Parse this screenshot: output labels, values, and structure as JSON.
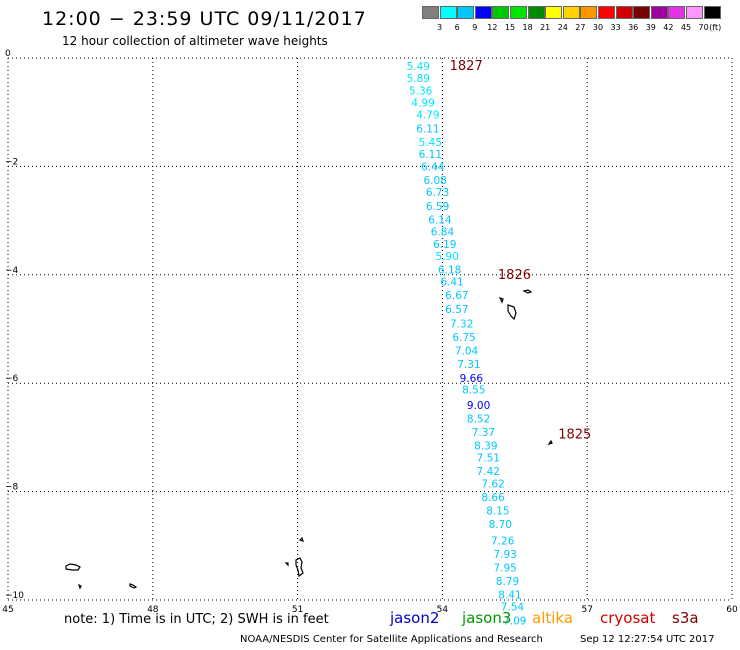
{
  "header": {
    "title": "12:00 − 23:59 UTC 09/11/2017",
    "subtitle": "12 hour collection of altimeter wave heights"
  },
  "colorbar": {
    "unit_label": "(ft)",
    "bins": [
      {
        "label": "3",
        "color": "#7f7f7f"
      },
      {
        "label": "6",
        "color": "#00ffff"
      },
      {
        "label": "9",
        "color": "#00c8ff"
      },
      {
        "label": "12",
        "color": "#0000ff"
      },
      {
        "label": "15",
        "color": "#00c800"
      },
      {
        "label": "18",
        "color": "#00e600"
      },
      {
        "label": "21",
        "color": "#008c00"
      },
      {
        "label": "24",
        "color": "#ffff00"
      },
      {
        "label": "27",
        "color": "#ffd200"
      },
      {
        "label": "30",
        "color": "#ff9600"
      },
      {
        "label": "33",
        "color": "#ff0000"
      },
      {
        "label": "36",
        "color": "#d20000"
      },
      {
        "label": "39",
        "color": "#780000"
      },
      {
        "label": "42",
        "color": "#a000a0"
      },
      {
        "label": "45",
        "color": "#e632e6"
      },
      {
        "label": "70",
        "color": "#ff96ff"
      },
      {
        "label": "",
        "color": "#000000"
      }
    ]
  },
  "chart_data": {
    "type": "scatter",
    "xlim": [
      45,
      60
    ],
    "ylim": [
      -10,
      0
    ],
    "x_ticks": [
      "45",
      "48",
      "51",
      "54",
      "57",
      "60"
    ],
    "y_ticks": [
      "0",
      "−2",
      "−4",
      "−6",
      "−8",
      "−10"
    ],
    "grid": true,
    "time_labels": [
      {
        "text": "1827",
        "x": 54.15,
        "y": -0.15
      },
      {
        "text": "1826",
        "x": 55.15,
        "y": -4.0
      },
      {
        "text": "1825",
        "x": 56.4,
        "y": -6.95
      }
    ],
    "points": [
      {
        "x": 53.5,
        "y": -0.15,
        "swh": "5.49"
      },
      {
        "x": 53.5,
        "y": -0.37,
        "swh": "5.89"
      },
      {
        "x": 53.55,
        "y": -0.6,
        "swh": "5.36"
      },
      {
        "x": 53.6,
        "y": -0.82,
        "swh": "4.99"
      },
      {
        "x": 53.7,
        "y": -1.04,
        "swh": "4.79"
      },
      {
        "x": 53.7,
        "y": -1.3,
        "swh": "6.11"
      },
      {
        "x": 53.75,
        "y": -1.55,
        "swh": "5.45"
      },
      {
        "x": 53.75,
        "y": -1.77,
        "swh": "6.11"
      },
      {
        "x": 53.8,
        "y": -2.0,
        "swh": "6.44"
      },
      {
        "x": 53.85,
        "y": -2.25,
        "swh": "6.08"
      },
      {
        "x": 53.9,
        "y": -2.47,
        "swh": "6.73"
      },
      {
        "x": 53.9,
        "y": -2.73,
        "swh": "6.59"
      },
      {
        "x": 53.95,
        "y": -2.98,
        "swh": "6.14"
      },
      {
        "x": 54.0,
        "y": -3.2,
        "swh": "6.84"
      },
      {
        "x": 54.05,
        "y": -3.43,
        "swh": "6.19"
      },
      {
        "x": 54.1,
        "y": -3.65,
        "swh": "5.90"
      },
      {
        "x": 54.15,
        "y": -3.9,
        "swh": "6.18"
      },
      {
        "x": 54.2,
        "y": -4.12,
        "swh": "6.41"
      },
      {
        "x": 54.3,
        "y": -4.37,
        "swh": "6.67"
      },
      {
        "x": 54.3,
        "y": -4.63,
        "swh": "6.57"
      },
      {
        "x": 54.4,
        "y": -4.9,
        "swh": "7.32"
      },
      {
        "x": 54.45,
        "y": -5.15,
        "swh": "6.75"
      },
      {
        "x": 54.5,
        "y": -5.4,
        "swh": "7.04"
      },
      {
        "x": 54.55,
        "y": -5.65,
        "swh": "7.31"
      },
      {
        "x": 54.6,
        "y": -5.9,
        "swh": "9.66"
      },
      {
        "x": 54.65,
        "y": -6.12,
        "swh": "8.55"
      },
      {
        "x": 54.75,
        "y": -6.4,
        "swh": "9.00"
      },
      {
        "x": 54.75,
        "y": -6.65,
        "swh": "8.52"
      },
      {
        "x": 54.85,
        "y": -6.9,
        "swh": "7.37"
      },
      {
        "x": 54.9,
        "y": -7.15,
        "swh": "8.39"
      },
      {
        "x": 54.95,
        "y": -7.37,
        "swh": "7.51"
      },
      {
        "x": 54.95,
        "y": -7.62,
        "swh": "7.42"
      },
      {
        "x": 55.05,
        "y": -7.85,
        "swh": "7.62"
      },
      {
        "x": 55.05,
        "y": -8.1,
        "swh": "8.66"
      },
      {
        "x": 55.15,
        "y": -8.35,
        "swh": "8.15"
      },
      {
        "x": 55.2,
        "y": -8.6,
        "swh": "8.70"
      },
      {
        "x": 55.25,
        "y": -8.9,
        "swh": "7.26"
      },
      {
        "x": 55.3,
        "y": -9.15,
        "swh": "7.93"
      },
      {
        "x": 55.3,
        "y": -9.4,
        "swh": "7.95"
      },
      {
        "x": 55.35,
        "y": -9.65,
        "swh": "8.79"
      },
      {
        "x": 55.4,
        "y": -9.9,
        "swh": "8.41"
      },
      {
        "x": 55.45,
        "y": -10.12,
        "swh": "7.54"
      },
      {
        "x": 55.5,
        "y": -10.38,
        "swh": "7.09"
      }
    ]
  },
  "footer": {
    "note": "note: 1) Time is in UTC; 2) SWH is in feet",
    "satellites": [
      {
        "name": "jason2",
        "color": "#0000cc"
      },
      {
        "name": "jason3",
        "color": "#009900"
      },
      {
        "name": "altika",
        "color": "#ff9900"
      },
      {
        "name": "cryosat",
        "color": "#cc0000"
      },
      {
        "name": "s3a",
        "color": "#800000"
      }
    ],
    "credit": "NOAA/NESDIS Center for Satellite Applications and Research",
    "timestamp": "Sep 12 12:27:54 UTC 2017"
  }
}
